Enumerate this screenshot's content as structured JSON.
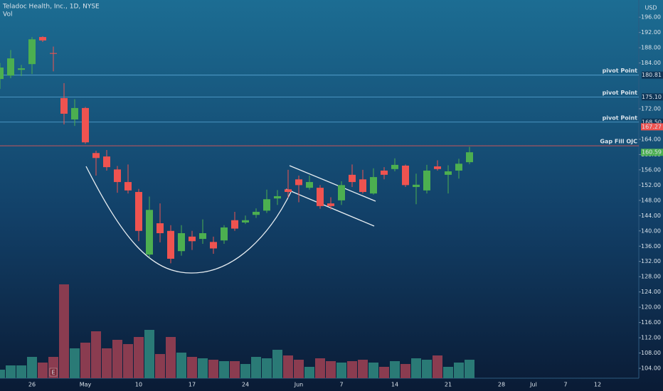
{
  "chart_data": {
    "type": "candlestick",
    "title": "Teladoc Health, Inc., 1D, NYSE",
    "currency": "USD",
    "earnings_marker": "E",
    "categories": [
      null,
      null,
      null,
      "26",
      null,
      null,
      null,
      null,
      "May",
      null,
      null,
      null,
      null,
      "10",
      null,
      null,
      null,
      null,
      "17",
      null,
      null,
      null,
      null,
      "24",
      null,
      null,
      null,
      null,
      "Jun",
      null,
      null,
      null,
      "7",
      null,
      null,
      null,
      null,
      "14",
      null,
      null,
      null,
      null,
      "21",
      null,
      null,
      null,
      null,
      "28",
      null,
      null,
      "Jul",
      null,
      null,
      "7",
      null,
      null,
      "12"
    ],
    "open": [
      179.8,
      180.7,
      182.2,
      183.7,
      190.8,
      186.6,
      174.8,
      169.2,
      172.2,
      160.4,
      159.5,
      156.1,
      152.8,
      150.2,
      133.8,
      142.0,
      140.0,
      134.7,
      138.5,
      137.9,
      137.1,
      137.5,
      142.8,
      142.2,
      144.2,
      145.3,
      148.5,
      150.9,
      153.5,
      151.3,
      151.3,
      147.2,
      148.0,
      154.7,
      153.5,
      149.8,
      155.8,
      156.2,
      157.1,
      151.5,
      150.6,
      156.9,
      154.7,
      155.8,
      158.0,
      null,
      null,
      null,
      null,
      null,
      null,
      null,
      null,
      null,
      null,
      null,
      null
    ],
    "high": [
      184.0,
      187.4,
      183.5,
      190.8,
      191.0,
      188.3,
      178.7,
      174.5,
      172.5,
      161.0,
      161.2,
      157.0,
      157.4,
      151.0,
      149.0,
      147.2,
      141.5,
      141.5,
      140.0,
      143.0,
      138.5,
      141.5,
      145.0,
      144.0,
      145.9,
      150.8,
      150.7,
      156.0,
      154.5,
      154.5,
      152.0,
      148.8,
      153.0,
      157.4,
      156.0,
      156.4,
      156.7,
      159.0,
      157.4,
      155.0,
      157.3,
      158.5,
      157.2,
      158.9,
      162.0,
      null,
      null,
      null,
      null,
      null,
      null,
      null,
      null,
      null,
      null,
      null,
      null
    ],
    "low": [
      177.2,
      180.0,
      180.6,
      181.1,
      189.5,
      181.8,
      167.9,
      167.5,
      162.8,
      154.5,
      155.8,
      150.0,
      149.8,
      137.3,
      133.0,
      137.0,
      131.5,
      133.5,
      135.0,
      136.6,
      134.0,
      136.6,
      140.0,
      141.8,
      143.4,
      144.7,
      146.8,
      148.7,
      147.5,
      150.8,
      145.8,
      145.6,
      146.8,
      151.5,
      149.8,
      149.5,
      153.5,
      155.6,
      151.5,
      147.0,
      149.8,
      155.8,
      149.8,
      153.7,
      157.5,
      null,
      null,
      null,
      null,
      null,
      null,
      null,
      null,
      null,
      null,
      null,
      null
    ],
    "close": [
      182.8,
      185.2,
      182.6,
      190.2,
      189.9,
      186.4,
      170.7,
      172.2,
      163.2,
      159.1,
      156.7,
      152.8,
      150.6,
      140.0,
      145.5,
      139.4,
      132.7,
      139.4,
      137.3,
      139.4,
      135.4,
      140.9,
      140.6,
      142.8,
      145.0,
      148.3,
      149.1,
      150.2,
      152.0,
      152.8,
      146.5,
      146.5,
      152.0,
      152.8,
      150.2,
      154.1,
      154.7,
      157.3,
      152.0,
      152.1,
      155.8,
      156.2,
      155.6,
      157.6,
      160.6,
      null,
      null,
      null,
      null,
      null,
      null,
      null,
      null,
      null,
      null,
      null,
      null
    ],
    "up_color": "#4caf50",
    "down_color": "#ef5350",
    "volume": {
      "name": "Vol",
      "up_color": "#2a7a76",
      "down_color": "#8a3c50",
      "ylim": [
        0,
        10
      ],
      "values": [
        0.6,
        0.9,
        0.9,
        1.5,
        1.1,
        1.5,
        6.6,
        2.1,
        2.5,
        3.3,
        2.1,
        2.7,
        2.4,
        2.9,
        3.4,
        1.7,
        2.9,
        1.8,
        1.5,
        1.4,
        1.3,
        1.2,
        1.2,
        1.0,
        1.5,
        1.4,
        2.0,
        1.6,
        1.3,
        0.8,
        1.4,
        1.2,
        1.1,
        1.2,
        1.3,
        1.1,
        0.8,
        1.2,
        1.0,
        1.4,
        1.3,
        1.6,
        0.8,
        1.1,
        1.3,
        null,
        null,
        null,
        null,
        null,
        null,
        null,
        null,
        null,
        null,
        null,
        null
      ]
    },
    "ylim": [
      101.4,
      200.5
    ],
    "yticks": [
      {
        "value": 104,
        "label": "104.00"
      },
      {
        "value": 108,
        "label": "108.00"
      },
      {
        "value": 112,
        "label": "112.00"
      },
      {
        "value": 116,
        "label": "116.00"
      },
      {
        "value": 120,
        "label": "120.00"
      },
      {
        "value": 124,
        "label": "124.00"
      },
      {
        "value": 128,
        "label": "128.00"
      },
      {
        "value": 132,
        "label": "132.00"
      },
      {
        "value": 136,
        "label": "136.00"
      },
      {
        "value": 140,
        "label": "140.00"
      },
      {
        "value": 144,
        "label": "144.00"
      },
      {
        "value": 148,
        "label": "148.00"
      },
      {
        "value": 152,
        "label": "152.00"
      },
      {
        "value": 156,
        "label": "156.00"
      },
      {
        "value": 160,
        "label": "160.00"
      },
      {
        "value": 164,
        "label": "164.00"
      },
      {
        "value": 172,
        "label": "172.00"
      },
      {
        "value": 184,
        "label": "184.00"
      },
      {
        "value": 188,
        "label": "188.00"
      },
      {
        "value": 192,
        "label": "192.00"
      },
      {
        "value": 196,
        "label": "196.00"
      }
    ],
    "hlines": [
      {
        "value": 180.81,
        "label": "180.81",
        "text": "pivot Point",
        "color": "#5aa7d6"
      },
      {
        "value": 175.1,
        "label": "175.10",
        "text": "pivot Point",
        "color": "#5aa7d6"
      },
      {
        "value": 168.5,
        "label": "168.50",
        "text": "pivot Point",
        "color": "#5aa7d6"
      },
      {
        "value": 162.3,
        "text": "Gap Fill OJC",
        "color": "#e05757"
      }
    ],
    "price_badges": [
      {
        "value": 167.27,
        "label": "167.27",
        "color": "#ef5350"
      },
      {
        "value": 160.59,
        "label": "160.59",
        "color": "#4caf50"
      }
    ]
  }
}
